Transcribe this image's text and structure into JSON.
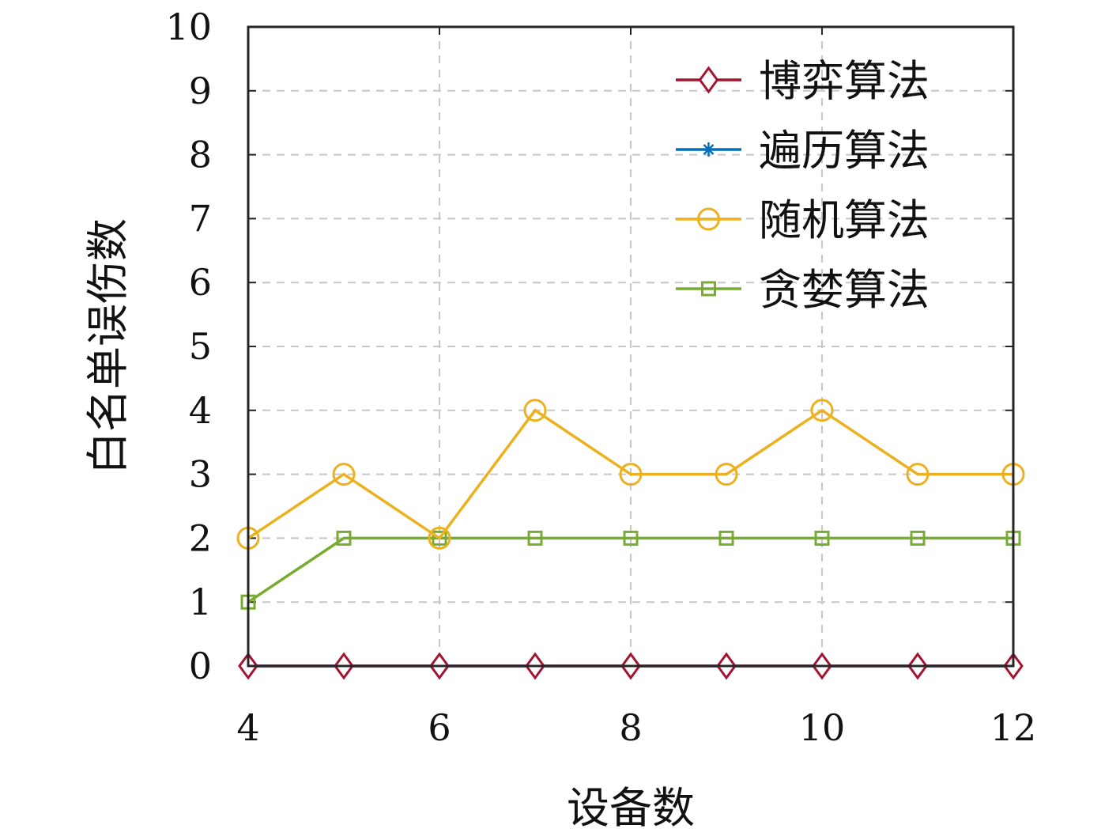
{
  "chart_data": {
    "type": "line",
    "title": "",
    "xlabel": "设备数",
    "ylabel": "白名单误伤数",
    "xlim": [
      4,
      12
    ],
    "ylim": [
      0,
      10
    ],
    "x_ticks": [
      4,
      6,
      8,
      10,
      12
    ],
    "y_ticks": [
      0,
      1,
      2,
      3,
      4,
      5,
      6,
      7,
      8,
      9,
      10
    ],
    "grid": true,
    "legend_position": "top-right",
    "x": [
      4,
      5,
      6,
      7,
      8,
      9,
      10,
      11,
      12
    ],
    "series": [
      {
        "name": "博弈算法",
        "marker": "diamond",
        "color": "#A2142F",
        "values": [
          0,
          0,
          0,
          0,
          0,
          0,
          0,
          0,
          0
        ]
      },
      {
        "name": "遍历算法",
        "marker": "asterisk",
        "color": "#0072BD",
        "values": [
          0,
          0,
          0,
          0,
          0,
          0,
          0,
          0,
          0
        ]
      },
      {
        "name": "随机算法",
        "marker": "circle",
        "color": "#EDB120",
        "values": [
          2,
          3,
          2,
          4,
          3,
          3,
          4,
          3,
          3
        ]
      },
      {
        "name": "贪婪算法",
        "marker": "square",
        "color": "#77AC30",
        "values": [
          1,
          2,
          2,
          2,
          2,
          2,
          2,
          2,
          2
        ]
      }
    ]
  }
}
